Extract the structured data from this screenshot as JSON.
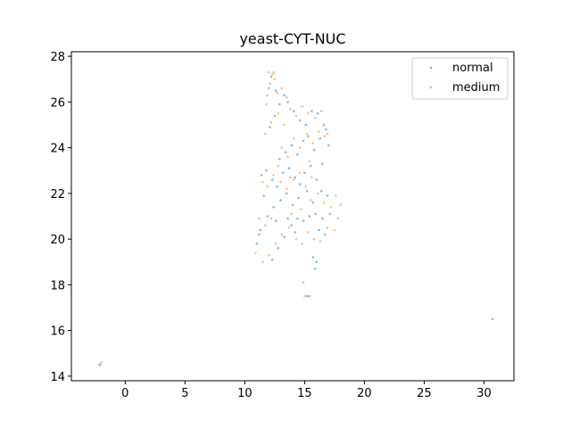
{
  "chart_data": {
    "type": "scatter",
    "title": "yeast-CYT-NUC",
    "xlabel": "",
    "ylabel": "",
    "xlim": [
      -4.5,
      32.5
    ],
    "ylim": [
      13.8,
      28.2
    ],
    "xticks": [
      0,
      5,
      10,
      15,
      20,
      25,
      30
    ],
    "yticks": [
      14,
      16,
      18,
      20,
      22,
      24,
      26,
      28
    ],
    "grid": false,
    "legend_position": "top-right",
    "marker_size_note": "small points, alpha ~0.45",
    "series": [
      {
        "name": "normal",
        "color": "#1f77b4",
        "points": [
          [
            -2.1,
            14.5
          ],
          [
            30.7,
            16.5
          ],
          [
            15.2,
            17.5
          ],
          [
            15.4,
            17.5
          ],
          [
            15.9,
            18.7
          ],
          [
            16.0,
            19.0
          ],
          [
            15.7,
            19.2
          ],
          [
            11.0,
            19.8
          ],
          [
            11.3,
            20.4
          ],
          [
            12.3,
            19.1
          ],
          [
            12.8,
            19.6
          ],
          [
            13.3,
            20.1
          ],
          [
            13.9,
            20.6
          ],
          [
            14.4,
            20.9
          ],
          [
            14.9,
            20.8
          ],
          [
            15.4,
            21.0
          ],
          [
            15.9,
            21.1
          ],
          [
            16.5,
            20.9
          ],
          [
            17.1,
            21.1
          ],
          [
            11.6,
            21.9
          ],
          [
            11.4,
            22.8
          ],
          [
            11.8,
            23.0
          ],
          [
            12.3,
            22.6
          ],
          [
            12.7,
            22.3
          ],
          [
            13.2,
            22.9
          ],
          [
            13.7,
            23.1
          ],
          [
            14.2,
            22.7
          ],
          [
            14.6,
            22.4
          ],
          [
            15.0,
            22.9
          ],
          [
            15.5,
            23.2
          ],
          [
            16.0,
            22.6
          ],
          [
            16.4,
            22.1
          ],
          [
            16.9,
            21.9
          ],
          [
            12.9,
            23.5
          ],
          [
            13.4,
            23.8
          ],
          [
            13.9,
            24.1
          ],
          [
            14.4,
            23.7
          ],
          [
            14.9,
            24.3
          ],
          [
            15.3,
            24.5
          ],
          [
            15.8,
            23.9
          ],
          [
            16.3,
            24.4
          ],
          [
            16.8,
            24.8
          ],
          [
            17.0,
            24.1
          ],
          [
            12.1,
            24.9
          ],
          [
            12.5,
            25.4
          ],
          [
            12.9,
            25.9
          ],
          [
            13.3,
            26.3
          ],
          [
            14.1,
            25.6
          ],
          [
            14.6,
            25.2
          ],
          [
            15.1,
            25.0
          ],
          [
            15.6,
            25.6
          ],
          [
            16.1,
            25.5
          ],
          [
            16.6,
            25.0
          ],
          [
            12.0,
            26.6
          ],
          [
            12.2,
            27.1
          ],
          [
            12.6,
            26.5
          ],
          [
            13.6,
            26.0
          ],
          [
            11.9,
            21.0
          ],
          [
            12.4,
            21.4
          ],
          [
            13.0,
            21.7
          ],
          [
            13.5,
            22.0
          ],
          [
            14.0,
            21.5
          ],
          [
            14.5,
            21.8
          ],
          [
            15.2,
            22.1
          ],
          [
            15.7,
            21.6
          ],
          [
            16.2,
            20.4
          ],
          [
            16.7,
            20.2
          ],
          [
            14.2,
            20.3
          ],
          [
            13.6,
            20.9
          ],
          [
            12.6,
            20.8
          ],
          [
            11.2,
            20.2
          ],
          [
            16.5,
            23.3
          ]
        ]
      },
      {
        "name": "medium",
        "color": "#ff7f0e",
        "points": [
          [
            -2.2,
            14.5
          ],
          [
            -2.0,
            14.6
          ],
          [
            15.0,
            17.5
          ],
          [
            14.9,
            18.1
          ],
          [
            10.9,
            19.4
          ],
          [
            11.5,
            19.0
          ],
          [
            12.0,
            19.3
          ],
          [
            12.6,
            19.8
          ],
          [
            13.1,
            20.2
          ],
          [
            13.7,
            20.5
          ],
          [
            14.3,
            20.0
          ],
          [
            14.8,
            19.8
          ],
          [
            15.3,
            20.3
          ],
          [
            15.8,
            20.0
          ],
          [
            16.3,
            19.9
          ],
          [
            17.5,
            20.4
          ],
          [
            17.8,
            20.9
          ],
          [
            18.0,
            21.5
          ],
          [
            17.6,
            21.9
          ],
          [
            11.2,
            20.9
          ],
          [
            11.7,
            20.6
          ],
          [
            12.2,
            20.9
          ],
          [
            11.5,
            22.5
          ],
          [
            11.9,
            22.3
          ],
          [
            12.4,
            22.8
          ],
          [
            13.0,
            22.5
          ],
          [
            13.5,
            22.2
          ],
          [
            14.1,
            22.6
          ],
          [
            14.6,
            22.9
          ],
          [
            15.1,
            22.3
          ],
          [
            15.6,
            22.7
          ],
          [
            16.1,
            22.0
          ],
          [
            16.6,
            21.6
          ],
          [
            17.2,
            21.4
          ],
          [
            13.1,
            24.0
          ],
          [
            13.6,
            23.6
          ],
          [
            14.1,
            24.4
          ],
          [
            14.6,
            24.0
          ],
          [
            15.2,
            24.6
          ],
          [
            15.7,
            24.2
          ],
          [
            16.2,
            24.7
          ],
          [
            16.7,
            24.5
          ],
          [
            11.7,
            24.6
          ],
          [
            12.2,
            25.1
          ],
          [
            12.8,
            25.5
          ],
          [
            13.3,
            25.0
          ],
          [
            13.8,
            25.7
          ],
          [
            14.3,
            25.4
          ],
          [
            14.8,
            25.8
          ],
          [
            15.3,
            25.5
          ],
          [
            15.9,
            25.3
          ],
          [
            16.4,
            25.6
          ],
          [
            16.9,
            24.6
          ],
          [
            11.9,
            26.3
          ],
          [
            12.1,
            26.8
          ],
          [
            12.3,
            27.2
          ],
          [
            12.5,
            27.0
          ],
          [
            12.7,
            26.4
          ],
          [
            13.1,
            26.6
          ],
          [
            13.5,
            26.2
          ],
          [
            12.0,
            27.3
          ],
          [
            12.4,
            27.3
          ],
          [
            11.8,
            25.9
          ],
          [
            13.9,
            21.1
          ],
          [
            14.7,
            21.3
          ],
          [
            15.5,
            21.7
          ],
          [
            16.9,
            20.5
          ],
          [
            12.8,
            23.2
          ],
          [
            13.8,
            22.7
          ],
          [
            15.4,
            23.4
          ]
        ]
      }
    ]
  }
}
